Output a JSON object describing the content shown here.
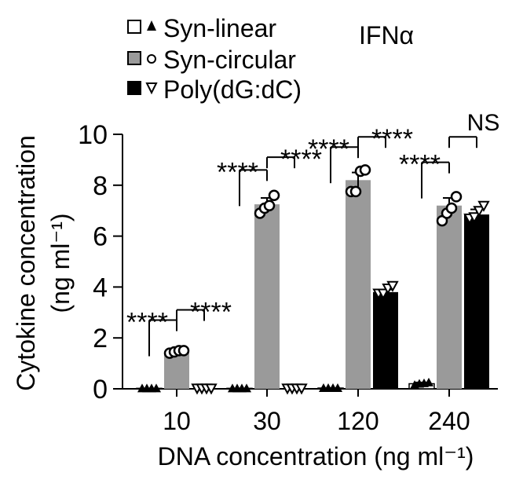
{
  "chart_data": {
    "type": "bar",
    "title": "IFNα",
    "xlabel": "DNA concentration (ng ml⁻¹)",
    "ylabel_line1": "Cytokine concentration",
    "ylabel_line2": "(ng ml⁻¹)",
    "ylim": [
      0,
      10
    ],
    "yticks": [
      "0",
      "2",
      "4",
      "6",
      "8",
      "10"
    ],
    "categories": [
      "10",
      "30",
      "120",
      "240"
    ],
    "legend_position": "top-left",
    "series": [
      {
        "name": "Syn-linear",
        "color": "#ffffff",
        "marker": "triangle-filled",
        "values": [
          0.02,
          0.02,
          0.03,
          0.2
        ],
        "errors": [
          0.0,
          0.0,
          0.0,
          0.05
        ],
        "points": [
          [
            0.02,
            0.02,
            0.02,
            0.02
          ],
          [
            0.02,
            0.02,
            0.02,
            0.02
          ],
          [
            0.03,
            0.03,
            0.03,
            0.03
          ],
          [
            0.15,
            0.2,
            0.22,
            0.25
          ]
        ]
      },
      {
        "name": "Syn-circular",
        "color": "#9a9a9a",
        "marker": "circle-open",
        "values": [
          1.45,
          7.25,
          8.2,
          7.2
        ],
        "errors": [
          0.05,
          0.25,
          0.3,
          0.3
        ],
        "points": [
          [
            1.4,
            1.45,
            1.5,
            1.5
          ],
          [
            6.9,
            7.1,
            7.2,
            7.6
          ],
          [
            7.75,
            7.75,
            8.55,
            8.6
          ],
          [
            6.6,
            6.9,
            7.1,
            7.55
          ]
        ]
      },
      {
        "name": "Poly(dG:dC)",
        "color": "#000000",
        "marker": "triangle-down-open",
        "values": [
          0.02,
          0.02,
          3.8,
          6.85
        ],
        "errors": [
          0.0,
          0.0,
          0.1,
          0.2
        ],
        "points": [
          [
            0.02,
            0.02,
            0.02,
            0.02
          ],
          [
            0.02,
            0.02,
            0.02,
            0.02
          ],
          [
            3.75,
            3.75,
            3.95,
            4.05
          ],
          [
            6.7,
            6.75,
            7.0,
            7.2
          ]
        ]
      }
    ],
    "annotations": [
      {
        "group": 0,
        "pair": "linear-circular",
        "label": "****"
      },
      {
        "group": 0,
        "pair": "circular-poly",
        "label": "****"
      },
      {
        "group": 1,
        "pair": "linear-circular",
        "label": "****"
      },
      {
        "group": 1,
        "pair": "circular-poly",
        "label": "****"
      },
      {
        "group": 2,
        "pair": "linear-circular",
        "label": "****"
      },
      {
        "group": 2,
        "pair": "circular-poly",
        "label": "****"
      },
      {
        "group": 3,
        "pair": "linear-circular",
        "label": "****"
      },
      {
        "group": 3,
        "pair": "circular-poly",
        "label": "NS"
      }
    ]
  }
}
